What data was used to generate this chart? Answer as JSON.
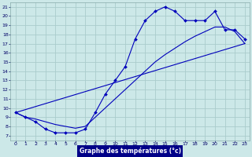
{
  "xlabel": "Graphe des températures (°c)",
  "bg_color": "#cce8e8",
  "grid_color": "#aacccc",
  "line_color": "#0000bb",
  "label_bar_color": "#000088",
  "label_text_color": "#ffffff",
  "xlim": [
    -0.5,
    23.5
  ],
  "ylim": [
    6.5,
    21.5
  ],
  "xticks": [
    0,
    1,
    2,
    3,
    4,
    5,
    6,
    7,
    8,
    9,
    10,
    11,
    12,
    13,
    14,
    15,
    16,
    17,
    18,
    19,
    20,
    21,
    22,
    23
  ],
  "yticks": [
    7,
    8,
    9,
    10,
    11,
    12,
    13,
    14,
    15,
    16,
    17,
    18,
    19,
    20,
    21
  ],
  "curve1_x": [
    0,
    1,
    2,
    3,
    4,
    5,
    6,
    7,
    8,
    9,
    10,
    11,
    12,
    13,
    14,
    15,
    16,
    17,
    18,
    19,
    20,
    21,
    22,
    23
  ],
  "curve1_y": [
    9.5,
    9.0,
    8.5,
    7.7,
    7.3,
    7.3,
    7.3,
    7.7,
    9.5,
    11.5,
    13.0,
    14.5,
    17.5,
    19.5,
    20.5,
    21.0,
    20.5,
    19.5,
    19.5,
    19.5,
    20.5,
    18.5,
    18.5,
    17.5
  ],
  "curve2_x": [
    0,
    1,
    2,
    3,
    4,
    5,
    6,
    7,
    8,
    9,
    10,
    11,
    12,
    13,
    14,
    15,
    16,
    17,
    18,
    19,
    20,
    21,
    22,
    23
  ],
  "curve2_y": [
    9.5,
    9.0,
    8.8,
    8.5,
    8.2,
    8.0,
    7.8,
    8.0,
    9.0,
    10.0,
    11.0,
    12.0,
    13.0,
    14.0,
    15.0,
    15.8,
    16.5,
    17.2,
    17.8,
    18.3,
    18.8,
    18.8,
    18.3,
    17.0
  ],
  "curve3_x": [
    0,
    23
  ],
  "curve3_y": [
    9.5,
    17.0
  ]
}
